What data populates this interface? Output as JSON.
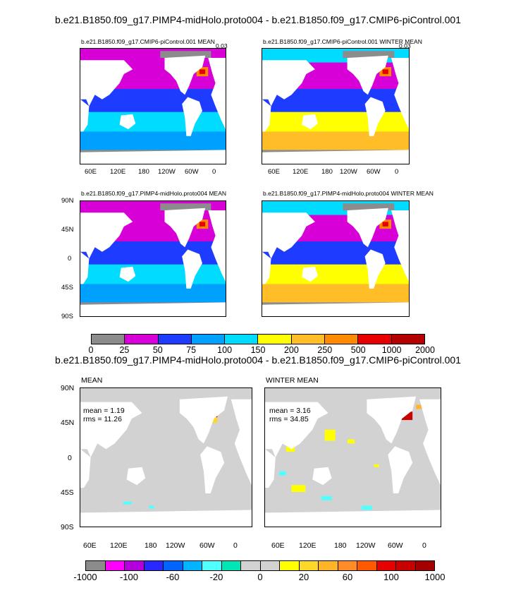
{
  "top_title": "b.e21.B1850.f09_g17.PIMP4-midHolo.proto004 - b.e21.B1850.f09_g17.CMIP6-piControl.001",
  "panels_top": [
    {
      "title": "b.e21.B1850.f09_g17.CMIP6-piControl.001 MEAN",
      "corner": "0.03"
    },
    {
      "title": "b.e21.B1850.f09_g17.CMIP6-piControl.001 WINTER MEAN",
      "corner": "0.03"
    },
    {
      "title": "b.e21.B1850.f09_g17.PIMP4-midHolo.proto004 MEAN",
      "corner": ""
    },
    {
      "title": "b.e21.B1850.f09_g17.PIMP4-midHolo.proto004 WINTER MEAN",
      "corner": ""
    }
  ],
  "lon_ticks": [
    "60E",
    "120E",
    "180",
    "120W",
    "60W",
    "0"
  ],
  "lat_ticks": [
    "90N",
    "45N",
    "0",
    "45S",
    "90S"
  ],
  "colorbar1": {
    "labels": [
      "0",
      "25",
      "50",
      "75",
      "100",
      "150",
      "200",
      "250",
      "500",
      "1000",
      "2000"
    ],
    "colors": [
      "#8c8c8c",
      "#d700d7",
      "#1e3cff",
      "#00a0ff",
      "#00dcff",
      "#ffff00",
      "#ffbe28",
      "#ff8c00",
      "#e60000",
      "#b40000"
    ]
  },
  "diff_title": "b.e21.B1850.f09_g17.PIMP4-midHolo.proto004 - b.e21.B1850.f09_g17.CMIP6-piControl.001",
  "panels_bottom": [
    {
      "title": "MEAN",
      "mean": "mean = 1.19",
      "rms": "rms = 11.26"
    },
    {
      "title": "WINTER MEAN",
      "mean": "mean = 3.16",
      "rms": "rms = 34.85"
    }
  ],
  "colorbar2": {
    "labels": [
      "-1000",
      "-100",
      "-60",
      "-20",
      "0",
      "20",
      "60",
      "100",
      "1000"
    ],
    "colors": [
      "#8c8c8c",
      "#ff00ff",
      "#b400dc",
      "#2828ff",
      "#0064ff",
      "#00b4ff",
      "#50ffff",
      "#00e6b4",
      "#d2d2d2",
      "#d2d2d2",
      "#ffff00",
      "#ffd728",
      "#ffb428",
      "#ff8c28",
      "#ff5a00",
      "#e60000",
      "#c80000",
      "#a50000"
    ]
  }
}
